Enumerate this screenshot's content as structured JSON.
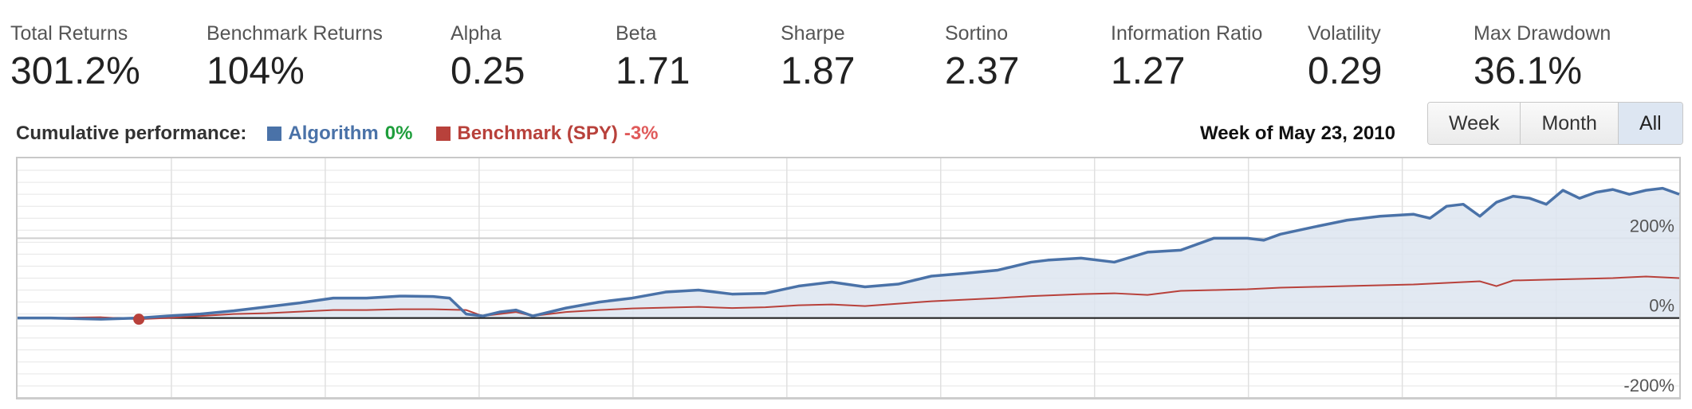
{
  "stats": [
    {
      "label": "Total Returns",
      "value": "301.2%"
    },
    {
      "label": "Benchmark Returns",
      "value": "104%"
    },
    {
      "label": "Alpha",
      "value": "0.25"
    },
    {
      "label": "Beta",
      "value": "1.71"
    },
    {
      "label": "Sharpe",
      "value": "1.87"
    },
    {
      "label": "Sortino",
      "value": "2.37"
    },
    {
      "label": "Information Ratio",
      "value": "1.27"
    },
    {
      "label": "Volatility",
      "value": "0.29"
    },
    {
      "label": "Max Drawdown",
      "value": "36.1%"
    }
  ],
  "performance": {
    "title": "Cumulative performance:",
    "algorithm_label": "Algorithm",
    "algorithm_pct": "0%",
    "benchmark_label": "Benchmark (SPY)",
    "benchmark_pct": "-3%",
    "week_label": "Week of May 23, 2010"
  },
  "range_buttons": [
    {
      "label": "Week",
      "active": false
    },
    {
      "label": "Month",
      "active": false
    },
    {
      "label": "All",
      "active": true
    }
  ],
  "colors": {
    "algorithm": "#4a72a8",
    "benchmark": "#b8413b",
    "algorithm_pct": "#1f9e3c",
    "benchmark_pct": "#e05a5a",
    "area_fill": "#dde5f0"
  },
  "chart_data": {
    "type": "line",
    "ylim": [
      -200,
      400
    ],
    "y_ticks": [
      -200,
      0,
      200
    ],
    "y_tick_labels": [
      "-200%",
      "0%",
      "200%"
    ],
    "grid": true,
    "legend": "top-left",
    "highlight_point": {
      "series": "Benchmark (SPY)",
      "x": 0.073,
      "y": -3
    },
    "series": [
      {
        "name": "Algorithm",
        "x": [
          0,
          0.02,
          0.05,
          0.073,
          0.09,
          0.11,
          0.13,
          0.15,
          0.17,
          0.19,
          0.21,
          0.23,
          0.25,
          0.26,
          0.27,
          0.28,
          0.29,
          0.3,
          0.31,
          0.33,
          0.35,
          0.37,
          0.39,
          0.41,
          0.43,
          0.45,
          0.47,
          0.49,
          0.51,
          0.53,
          0.55,
          0.57,
          0.59,
          0.61,
          0.62,
          0.64,
          0.66,
          0.68,
          0.7,
          0.72,
          0.74,
          0.75,
          0.76,
          0.78,
          0.8,
          0.82,
          0.84,
          0.85,
          0.86,
          0.87,
          0.88,
          0.89,
          0.9,
          0.91,
          0.92,
          0.93,
          0.94,
          0.95,
          0.96,
          0.97,
          0.98,
          0.99,
          1.0
        ],
        "values": [
          0,
          0,
          -3,
          0,
          5,
          10,
          18,
          28,
          38,
          50,
          50,
          55,
          54,
          50,
          10,
          5,
          15,
          20,
          5,
          25,
          40,
          50,
          65,
          70,
          60,
          62,
          80,
          90,
          78,
          85,
          105,
          112,
          120,
          140,
          145,
          150,
          140,
          165,
          170,
          200,
          200,
          195,
          210,
          228,
          245,
          255,
          260,
          250,
          280,
          285,
          255,
          290,
          305,
          300,
          285,
          320,
          300,
          315,
          322,
          310,
          320,
          325,
          310
        ]
      },
      {
        "name": "Benchmark (SPY)",
        "x": [
          0,
          0.02,
          0.05,
          0.073,
          0.09,
          0.11,
          0.13,
          0.15,
          0.17,
          0.19,
          0.21,
          0.23,
          0.25,
          0.27,
          0.28,
          0.3,
          0.31,
          0.33,
          0.35,
          0.37,
          0.39,
          0.41,
          0.43,
          0.45,
          0.47,
          0.49,
          0.51,
          0.53,
          0.55,
          0.57,
          0.59,
          0.61,
          0.64,
          0.66,
          0.68,
          0.7,
          0.72,
          0.74,
          0.76,
          0.78,
          0.8,
          0.82,
          0.84,
          0.86,
          0.88,
          0.89,
          0.9,
          0.92,
          0.94,
          0.96,
          0.98,
          1.0
        ],
        "values": [
          0,
          0,
          2,
          -3,
          0,
          5,
          10,
          12,
          16,
          20,
          20,
          22,
          22,
          20,
          5,
          15,
          5,
          15,
          20,
          24,
          26,
          28,
          25,
          27,
          32,
          34,
          30,
          36,
          42,
          46,
          50,
          55,
          60,
          62,
          58,
          68,
          70,
          72,
          76,
          78,
          80,
          82,
          84,
          88,
          92,
          80,
          94,
          96,
          98,
          100,
          104,
          100
        ]
      }
    ]
  }
}
